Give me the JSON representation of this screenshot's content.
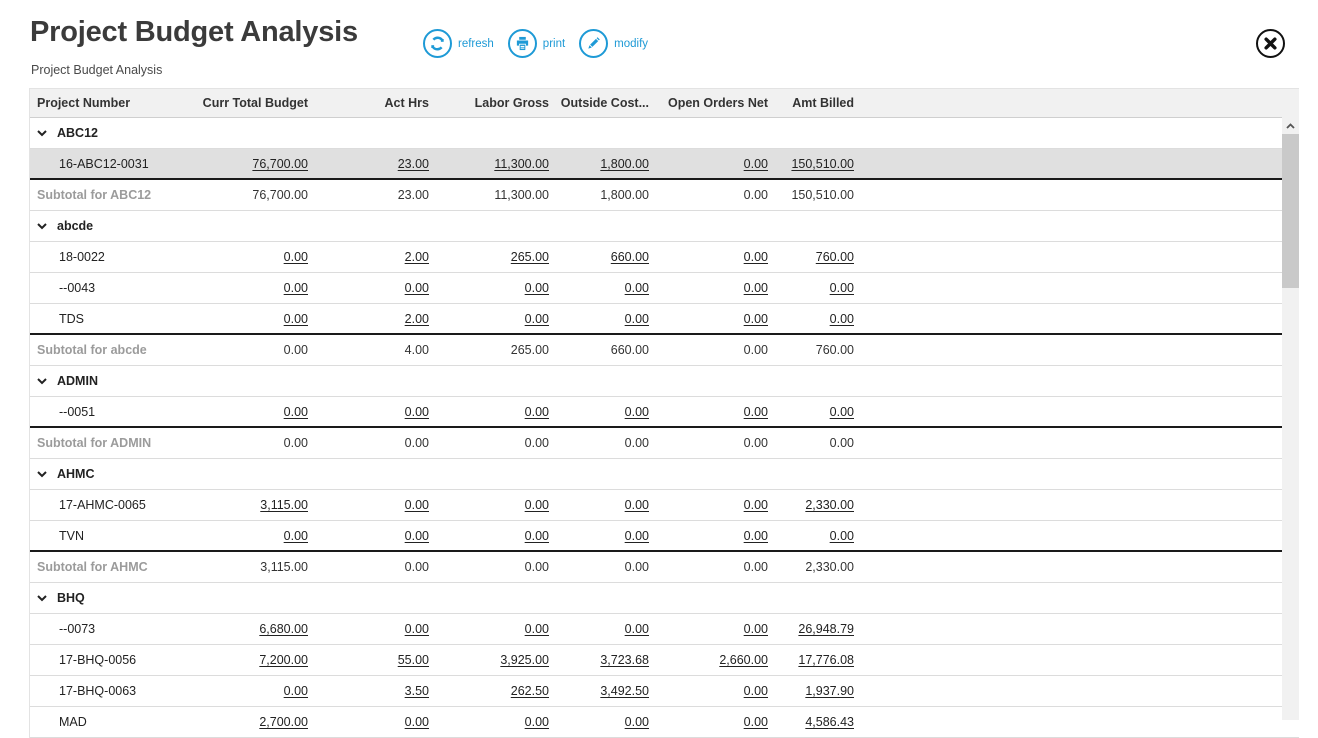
{
  "page": {
    "title": "Project Budget Analysis",
    "subtitle": "Project Budget Analysis"
  },
  "colors": {
    "accent_blue": "#1e9ad6",
    "selected_row_bg": "#e0e0e0",
    "header_bg": "#f1f1f1",
    "subtotal_label": "#9b9b9b"
  },
  "toolbar": {
    "buttons": [
      {
        "icon": "refresh-icon",
        "label": "refresh"
      },
      {
        "icon": "print-icon",
        "label": "print"
      },
      {
        "icon": "modify-icon",
        "label": "modify"
      }
    ]
  },
  "table": {
    "columns": [
      "Project Number",
      "Curr Total Budget",
      "Act Hrs",
      "Labor Gross",
      "Outside Cost...",
      "Open Orders Net",
      "Amt Billed"
    ],
    "groups": [
      {
        "name": "ABC12",
        "rows": [
          {
            "project": "16-ABC12-0031",
            "selected": true,
            "values": [
              "76,700.00",
              "23.00",
              "11,300.00",
              "1,800.00",
              "0.00",
              "150,510.00"
            ]
          }
        ],
        "subtotal_label": "Subtotal for ABC12",
        "subtotal": [
          "76,700.00",
          "23.00",
          "11,300.00",
          "1,800.00",
          "0.00",
          "150,510.00"
        ]
      },
      {
        "name": "abcde",
        "rows": [
          {
            "project": "18-0022",
            "values": [
              "0.00",
              "2.00",
              "265.00",
              "660.00",
              "0.00",
              "760.00"
            ]
          },
          {
            "project": "--0043",
            "values": [
              "0.00",
              "0.00",
              "0.00",
              "0.00",
              "0.00",
              "0.00"
            ]
          },
          {
            "project": "TDS",
            "values": [
              "0.00",
              "2.00",
              "0.00",
              "0.00",
              "0.00",
              "0.00"
            ]
          }
        ],
        "subtotal_label": "Subtotal for abcde",
        "subtotal": [
          "0.00",
          "4.00",
          "265.00",
          "660.00",
          "0.00",
          "760.00"
        ]
      },
      {
        "name": "ADMIN",
        "rows": [
          {
            "project": "--0051",
            "values": [
              "0.00",
              "0.00",
              "0.00",
              "0.00",
              "0.00",
              "0.00"
            ]
          }
        ],
        "subtotal_label": "Subtotal for ADMIN",
        "subtotal": [
          "0.00",
          "0.00",
          "0.00",
          "0.00",
          "0.00",
          "0.00"
        ]
      },
      {
        "name": "AHMC",
        "rows": [
          {
            "project": "17-AHMC-0065",
            "values": [
              "3,115.00",
              "0.00",
              "0.00",
              "0.00",
              "0.00",
              "2,330.00"
            ]
          },
          {
            "project": "TVN",
            "values": [
              "0.00",
              "0.00",
              "0.00",
              "0.00",
              "0.00",
              "0.00"
            ]
          }
        ],
        "subtotal_label": "Subtotal for AHMC",
        "subtotal": [
          "3,115.00",
          "0.00",
          "0.00",
          "0.00",
          "0.00",
          "2,330.00"
        ]
      },
      {
        "name": "BHQ",
        "rows": [
          {
            "project": "--0073",
            "values": [
              "6,680.00",
              "0.00",
              "0.00",
              "0.00",
              "0.00",
              "26,948.79"
            ]
          },
          {
            "project": "17-BHQ-0056",
            "values": [
              "7,200.00",
              "55.00",
              "3,925.00",
              "3,723.68",
              "2,660.00",
              "17,776.08"
            ]
          },
          {
            "project": "17-BHQ-0063",
            "values": [
              "0.00",
              "3.50",
              "262.50",
              "3,492.50",
              "0.00",
              "1,937.90"
            ]
          },
          {
            "project": "MAD",
            "values": [
              "2,700.00",
              "0.00",
              "0.00",
              "0.00",
              "0.00",
              "4,586.43"
            ]
          }
        ]
      }
    ]
  }
}
